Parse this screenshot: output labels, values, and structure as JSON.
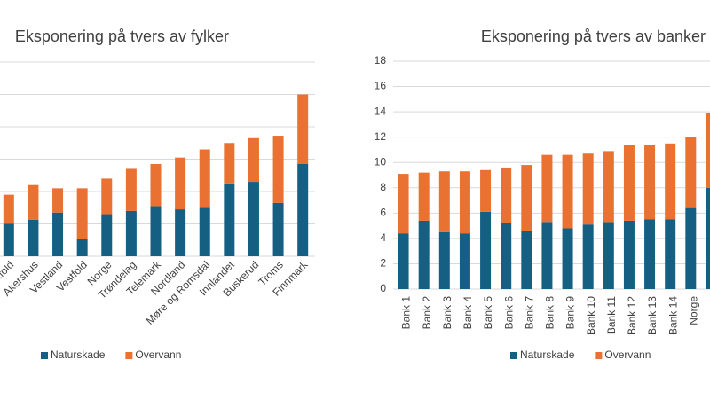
{
  "chart_data": [
    {
      "type": "stacked_bar",
      "title": "Eksponering på tvers av fylker",
      "categories": [
        "Østfold",
        "Akershus",
        "Vestland",
        "Vestfold",
        "Norge",
        "Trøndelag",
        "Telemark",
        "Nordland",
        "Møre og Romsdal",
        "Innlandet",
        "Buskerud",
        "Troms",
        "Finnmark"
      ],
      "series": [
        {
          "name": "Naturskade",
          "color": "#156082",
          "values": [
            2.0,
            2.25,
            2.7,
            1.05,
            2.6,
            2.8,
            3.1,
            2.9,
            3.0,
            4.5,
            4.6,
            3.3,
            5.7
          ]
        },
        {
          "name": "Overvann",
          "color": "#e97132",
          "values": [
            1.8,
            2.15,
            1.5,
            3.15,
            2.2,
            2.6,
            2.6,
            3.2,
            3.6,
            2.5,
            2.7,
            4.15,
            4.3
          ]
        }
      ],
      "ylim": [
        0,
        12
      ],
      "yticks": [
        0,
        2,
        4,
        6,
        8,
        10,
        12
      ],
      "grid": true,
      "legend": "bottom"
    },
    {
      "type": "stacked_bar",
      "title": "Eksponering på tvers av banker",
      "categories": [
        "Bank 1",
        "Bank 2",
        "Bank 3",
        "Bank 4",
        "Bank 5",
        "Bank 6",
        "Bank 7",
        "Bank 8",
        "Bank 9",
        "Bank 10",
        "Bank 11",
        "Bank 12",
        "Bank 13",
        "Bank 14",
        "Norge",
        null
      ],
      "series": [
        {
          "name": "Naturskade",
          "color": "#156082",
          "values": [
            4.4,
            5.4,
            4.5,
            4.4,
            6.1,
            5.2,
            4.6,
            5.3,
            4.8,
            5.1,
            5.3,
            5.4,
            5.5,
            5.5,
            6.4,
            8.0
          ]
        },
        {
          "name": "Overvann",
          "color": "#e97132",
          "values": [
            4.7,
            3.8,
            4.8,
            4.9,
            3.3,
            4.4,
            5.2,
            5.3,
            5.8,
            5.6,
            5.6,
            6.0,
            5.9,
            6.0,
            5.6,
            5.9
          ]
        }
      ],
      "ylim": [
        0,
        18
      ],
      "yticks": [
        0,
        2,
        4,
        6,
        8,
        10,
        12,
        14,
        16,
        18
      ],
      "grid": true,
      "legend": "bottom"
    }
  ]
}
